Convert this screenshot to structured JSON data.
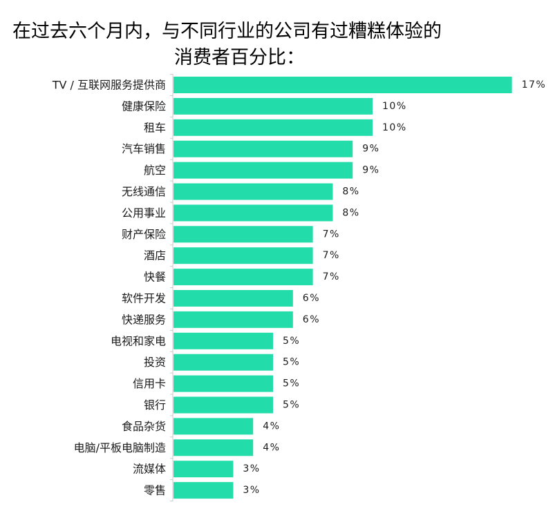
{
  "chart_data": {
    "type": "bar",
    "orientation": "horizontal",
    "title_lines": [
      "在过去六个月内，与不同行业的公司有过糟糕体验的",
      "消费者百分比："
    ],
    "categories": [
      "TV / 互联网服务提供商",
      "健康保险",
      "租车",
      "汽车销售",
      "航空",
      "无线通信",
      "公用事业",
      "财产保险",
      "酒店",
      "快餐",
      "软件开发",
      "快递服务",
      "电视和家电",
      "投资",
      "信用卡",
      "银行",
      "食品杂货",
      "电脑/平板电脑制造",
      "流媒体",
      "零售"
    ],
    "values": [
      17,
      10,
      10,
      9,
      9,
      8,
      8,
      7,
      7,
      7,
      6,
      6,
      5,
      5,
      5,
      5,
      4,
      4,
      3,
      3
    ],
    "value_labels": [
      "17%",
      "10%",
      "10%",
      "9%",
      "9%",
      "8%",
      "8%",
      "7%",
      "7%",
      "7%",
      "6%",
      "6%",
      "5%",
      "5%",
      "5%",
      "5%",
      "4%",
      "4%",
      "3%",
      "3%"
    ],
    "bar_color": "#22dcaa",
    "axis_color": "#c8c8c8",
    "grid": false,
    "legend": "none"
  }
}
